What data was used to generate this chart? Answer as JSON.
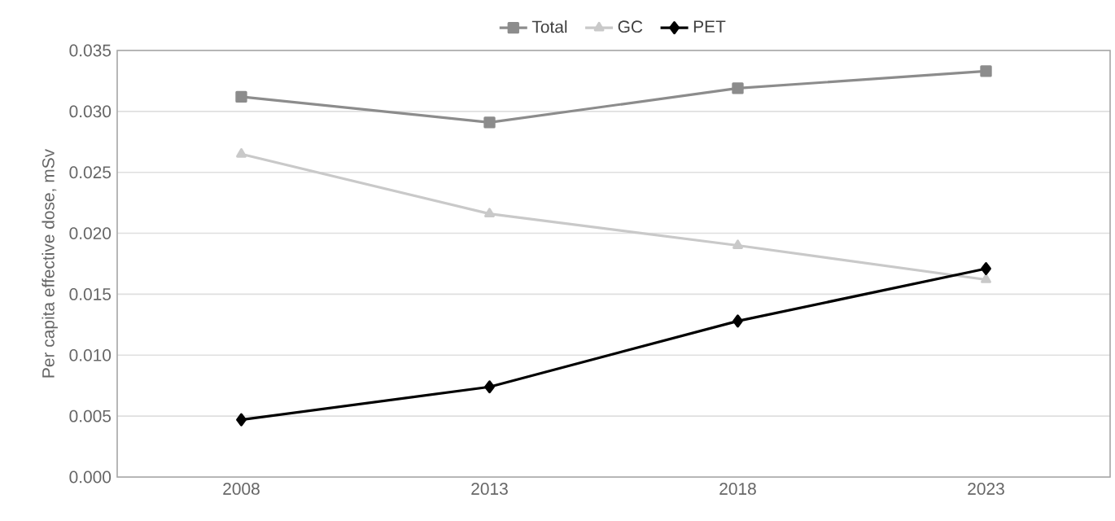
{
  "chart_data": {
    "type": "line",
    "ylabel": "Per capita effective dose, mSv",
    "categories": [
      "2008",
      "2013",
      "2018",
      "2023"
    ],
    "series": [
      {
        "name": "Total",
        "color": "#8c8c8c",
        "marker": "square",
        "values": [
          0.0312,
          0.0291,
          0.0319,
          0.0333
        ]
      },
      {
        "name": "GC",
        "color": "#c9c9c9",
        "marker": "triangle",
        "values": [
          0.0265,
          0.0216,
          0.019,
          0.0162
        ]
      },
      {
        "name": "PET",
        "color": "#000000",
        "marker": "diamond",
        "values": [
          0.0047,
          0.0074,
          0.0128,
          0.0171
        ]
      }
    ],
    "ylim": [
      0,
      0.035
    ],
    "yticks": [
      {
        "value": 0,
        "label": "0.000"
      },
      {
        "value": 0.005,
        "label": "0.005"
      },
      {
        "value": 0.01,
        "label": "0.010"
      },
      {
        "value": 0.015,
        "label": "0.015"
      },
      {
        "value": 0.02,
        "label": "0.020"
      },
      {
        "value": 0.025,
        "label": "0.025"
      },
      {
        "value": 0.03,
        "label": "0.030"
      },
      {
        "value": 0.035,
        "label": "0.035"
      }
    ],
    "grid": "y",
    "legend": "top",
    "line_style": "solid"
  }
}
